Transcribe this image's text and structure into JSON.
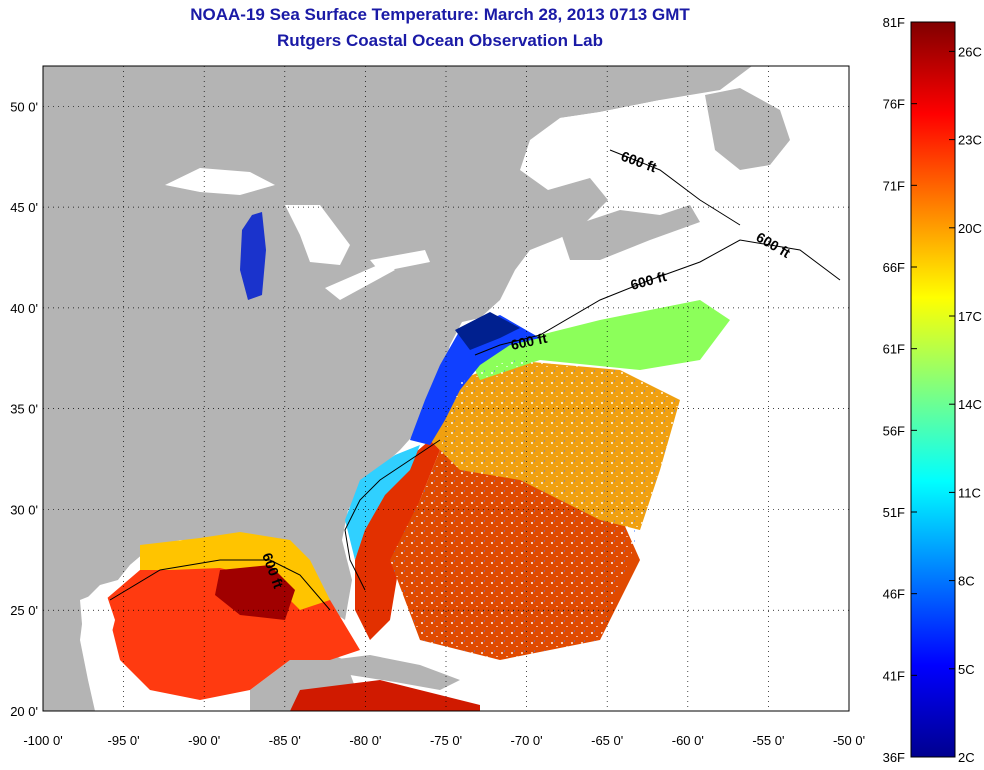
{
  "header": {
    "title": "NOAA-19 Sea Surface Temperature:  March 28, 2013 0713 GMT",
    "subtitle": "Rutgers Coastal Ocean Observation Lab"
  },
  "map": {
    "lon_range": [
      -100,
      -50
    ],
    "lat_range": [
      20,
      52
    ],
    "lon_ticks": [
      "-100 0'",
      "-95 0'",
      "-90 0'",
      "-85 0'",
      "-80 0'",
      "-75 0'",
      "-70 0'",
      "-65 0'",
      "-60 0'",
      "-55 0'",
      "-50 0'"
    ],
    "lat_ticks": [
      "20 0'",
      "25 0'",
      "30 0'",
      "35 0'",
      "40 0'",
      "45 0'",
      "50 0'"
    ],
    "contour_label": "600 ft",
    "land_color": "#b4b4b4",
    "no_data_color": "#ffffff"
  },
  "colorbar": {
    "fahrenheit_labels": [
      "81F",
      "76F",
      "71F",
      "66F",
      "61F",
      "56F",
      "51F",
      "46F",
      "41F",
      "36F"
    ],
    "celsius_labels": [
      "26C",
      "23C",
      "20C",
      "17C",
      "14C",
      "11C",
      "8C",
      "5C",
      "2C"
    ],
    "range_f": [
      36,
      81
    ],
    "range_c": [
      2,
      27
    ],
    "colormap": "jet"
  }
}
